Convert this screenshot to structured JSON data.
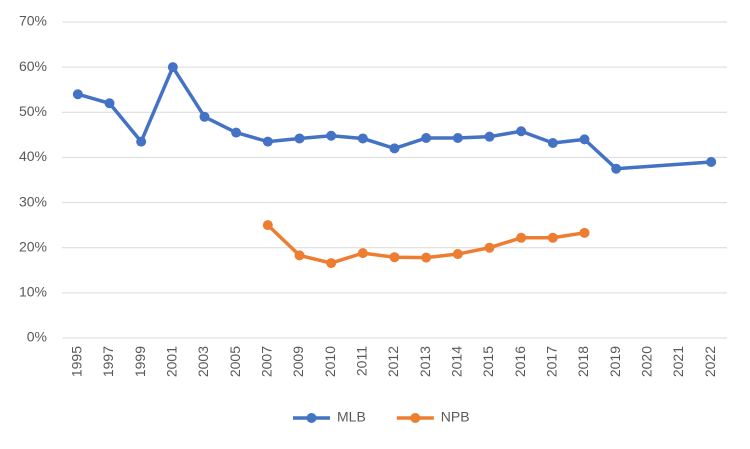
{
  "chart_data": {
    "type": "line",
    "categories": [
      "1995",
      "1997",
      "1999",
      "2001",
      "2003",
      "2005",
      "2007",
      "2009",
      "2010",
      "2011",
      "2012",
      "2013",
      "2014",
      "2015",
      "2016",
      "2017",
      "2018",
      "2019",
      "2020",
      "2021",
      "2022"
    ],
    "series": [
      {
        "name": "MLB",
        "color": "#4472c4",
        "values": [
          54,
          52,
          43.5,
          60,
          49,
          45.5,
          43.5,
          44.2,
          44.8,
          44.2,
          42,
          44.3,
          44.3,
          44.6,
          45.8,
          43.2,
          44,
          37.5,
          null,
          null,
          39
        ]
      },
      {
        "name": "NPB",
        "color": "#ed7d31",
        "values": [
          null,
          null,
          null,
          null,
          null,
          null,
          25,
          18.3,
          16.6,
          18.8,
          17.9,
          17.8,
          18.6,
          20,
          22.2,
          22.2,
          23.3,
          null,
          null,
          null,
          null
        ]
      }
    ],
    "connect_nulls": true,
    "ylim": [
      0,
      70
    ],
    "yticks": [
      {
        "value": 0,
        "label": "0%"
      },
      {
        "value": 10,
        "label": "10%"
      },
      {
        "value": 20,
        "label": "20%"
      },
      {
        "value": 30,
        "label": "30%"
      },
      {
        "value": 40,
        "label": "40%"
      },
      {
        "value": 50,
        "label": "50%"
      },
      {
        "value": 60,
        "label": "60%"
      },
      {
        "value": 70,
        "label": "70%"
      }
    ],
    "grid": true,
    "legend": "bottom"
  }
}
